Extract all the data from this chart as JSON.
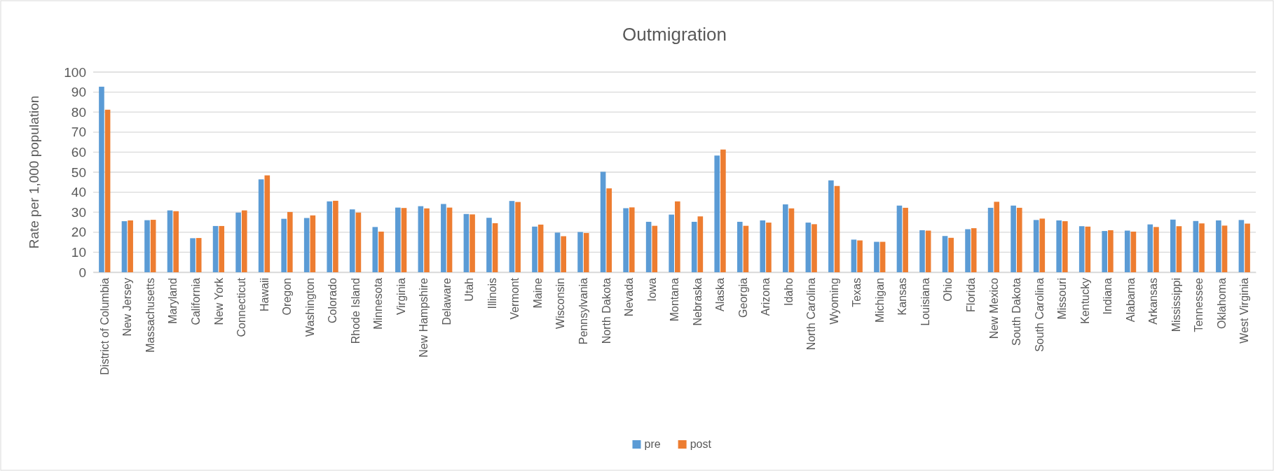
{
  "chart_data": {
    "type": "bar",
    "title": "Outmigration",
    "ylabel": "Rate per 1,000 population",
    "categories": [
      "District of Columbia",
      "New Jersey",
      "Massachusetts",
      "Maryland",
      "California",
      "New York",
      "Connecticut",
      "Hawaii",
      "Oregon",
      "Washington",
      "Colorado",
      "Rhode Island",
      "Minnesota",
      "Virginia",
      "New Hampshire",
      "Delaware",
      "Utah",
      "Illinois",
      "Vermont",
      "Maine",
      "Wisconsin",
      "Pennsylvania",
      "North Dakota",
      "Nevada",
      "Iowa",
      "Montana",
      "Nebraska",
      "Alaska",
      "Georgia",
      "Arizona",
      "Idaho",
      "North Carolina",
      "Wyoming",
      "Texas",
      "Michigan",
      "Kansas",
      "Louisiana",
      "Ohio",
      "Florida",
      "New Mexico",
      "South Dakota",
      "South Carolina",
      "Missouri",
      "Kentucky",
      "Indiana",
      "Alabama",
      "Arkansas",
      "Mississippi",
      "Tennessee",
      "Oklahoma",
      "West Virginia"
    ],
    "series": [
      {
        "name": "pre",
        "color": "#5b9bd5",
        "values": [
          92.7,
          25.5,
          26,
          30.9,
          17,
          23.1,
          29.8,
          46.4,
          26.7,
          27.1,
          35.4,
          31.4,
          22.6,
          32.3,
          33,
          34.1,
          29.1,
          27.2,
          35.6,
          22.8,
          19.8,
          20.1,
          50.2,
          32,
          25.2,
          28.8,
          25.2,
          58.3,
          25.2,
          25.9,
          33.9,
          24.8,
          45.9,
          16.3,
          15.2,
          33.3,
          21,
          18.1,
          21.5,
          32.2,
          33.3,
          26.1,
          25.9,
          23,
          20.6,
          20.8,
          23.9,
          26.3,
          25.6,
          25.9,
          26.1
        ]
      },
      {
        "name": "post",
        "color": "#ed7d31",
        "values": [
          81.2,
          25.9,
          26.2,
          30.5,
          17.1,
          23.1,
          30.9,
          48.4,
          30.1,
          28.4,
          35.7,
          29.8,
          20.3,
          32.1,
          31.9,
          32.3,
          28.9,
          24.5,
          35.1,
          23.8,
          18,
          19.6,
          41.9,
          32.4,
          23.2,
          35.4,
          27.9,
          61.3,
          23.2,
          24.8,
          31.9,
          24,
          43.1,
          15.9,
          15.2,
          32.2,
          20.8,
          17.2,
          22,
          35.2,
          32.2,
          26.8,
          25.5,
          22.8,
          21,
          20.3,
          22.6,
          23,
          24.4,
          23.3,
          24.3
        ]
      }
    ],
    "ylim": [
      0,
      100
    ],
    "yticks": [
      0,
      10,
      20,
      30,
      40,
      50,
      60,
      70,
      80,
      90,
      100
    ],
    "grid": "y",
    "legend": "bottom"
  }
}
